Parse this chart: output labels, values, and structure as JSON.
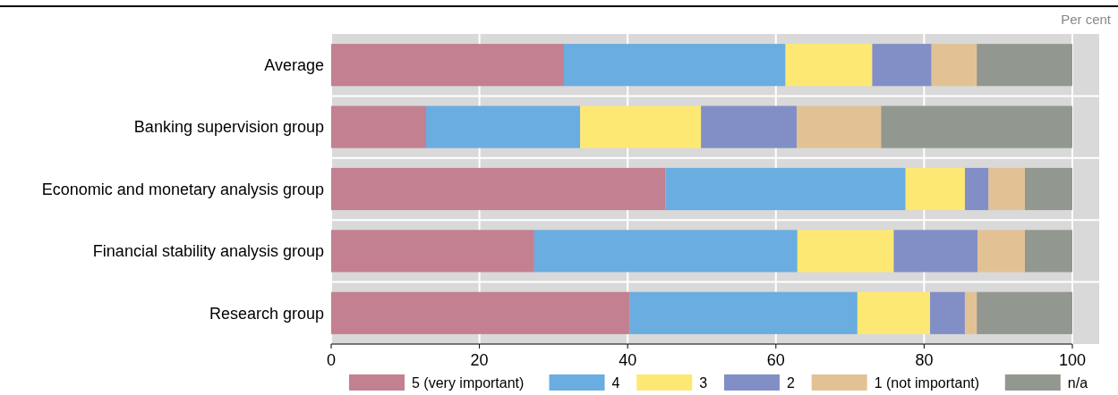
{
  "chart_data": {
    "type": "bar",
    "orientation": "horizontal",
    "stacked": true,
    "categories": [
      "Average",
      "Banking supervision group",
      "Economic and monetary analysis group",
      "Financial stability analysis group",
      "Research group"
    ],
    "series": [
      {
        "name": "5 (very important)",
        "color": "#c38090",
        "values": [
          31.4,
          12.8,
          45.1,
          27.4,
          40.3
        ]
      },
      {
        "name": "4",
        "color": "#6aade0",
        "values": [
          29.9,
          20.8,
          32.4,
          35.5,
          30.7
        ]
      },
      {
        "name": "3",
        "color": "#fee874",
        "values": [
          11.7,
          16.3,
          8.0,
          13.0,
          9.8
        ]
      },
      {
        "name": "2",
        "color": "#828fc6",
        "values": [
          8.0,
          12.9,
          3.2,
          11.3,
          4.7
        ]
      },
      {
        "name": "1 (not important)",
        "color": "#e2c294",
        "values": [
          6.1,
          11.4,
          4.9,
          6.4,
          1.6
        ]
      },
      {
        "name": "n/a",
        "color": "#929890",
        "values": [
          12.9,
          25.8,
          6.4,
          6.4,
          12.9
        ]
      }
    ],
    "xlim": [
      0,
      100
    ],
    "xticks": [
      0,
      20,
      40,
      60,
      80,
      100
    ],
    "grid": "x",
    "legend": "bottom",
    "annotations": [
      "Per cent"
    ]
  }
}
